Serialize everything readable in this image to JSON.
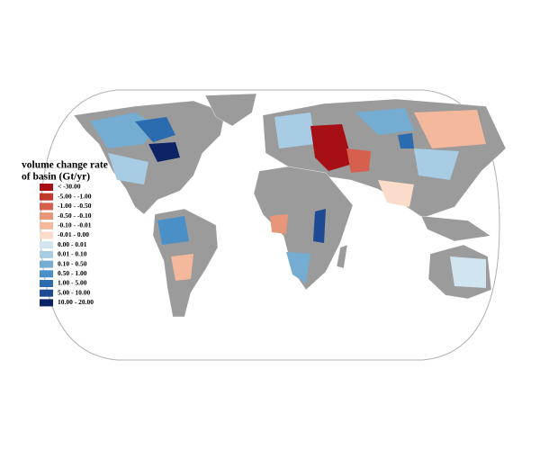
{
  "legend": {
    "title": [
      "volume change rate",
      "of basin (Gt/yr)"
    ],
    "entries": [
      {
        "label": "< -30.00",
        "color": "#a50f15"
      },
      {
        "label": "-5.00 - -1.00",
        "color": "#c0392b"
      },
      {
        "label": "-1.00 - -0.50",
        "color": "#d6604d"
      },
      {
        "label": "-0.50 - -0.10",
        "color": "#e8967a"
      },
      {
        "label": "-0.10 - -0.01",
        "color": "#f4b89c"
      },
      {
        "label": "-0.01 - 0.00",
        "color": "#fbdccb"
      },
      {
        "label": "0.00 - 0.01",
        "color": "#d1e5f0"
      },
      {
        "label": "0.01 - 0.10",
        "color": "#a8cce4"
      },
      {
        "label": "0.10 - 0.50",
        "color": "#74add1"
      },
      {
        "label": "0.50 - 1.00",
        "color": "#4a8fc6"
      },
      {
        "label": "1.00 - 5.00",
        "color": "#2b6cb0"
      },
      {
        "label": "5.00 - 10.00",
        "color": "#1d4a92"
      },
      {
        "label": "10.00 - 20.00",
        "color": "#0c2466"
      }
    ]
  }
}
